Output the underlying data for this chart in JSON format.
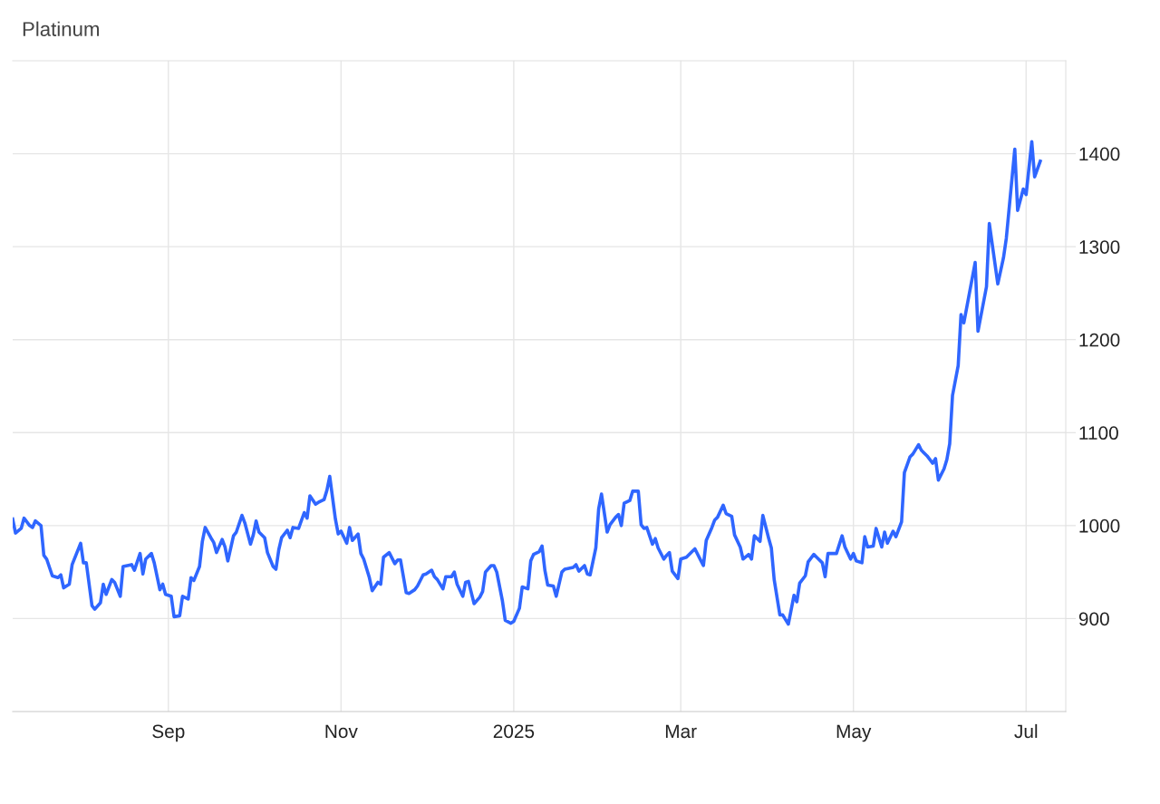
{
  "chart_data": {
    "type": "line",
    "title": "Platinum",
    "x": [
      "2024-07-08",
      "2024-07-09",
      "2024-07-11",
      "2024-07-12",
      "2024-07-14",
      "2024-07-15",
      "2024-07-16",
      "2024-07-18",
      "2024-07-19",
      "2024-07-20",
      "2024-07-22",
      "2024-07-24",
      "2024-07-25",
      "2024-07-26",
      "2024-07-28",
      "2024-07-29",
      "2024-08-01",
      "2024-08-02",
      "2024-08-03",
      "2024-08-05",
      "2024-08-06",
      "2024-08-08",
      "2024-08-09",
      "2024-08-10",
      "2024-08-12",
      "2024-08-13",
      "2024-08-15",
      "2024-08-16",
      "2024-08-19",
      "2024-08-20",
      "2024-08-22",
      "2024-08-23",
      "2024-08-24",
      "2024-08-26",
      "2024-08-27",
      "2024-08-29",
      "2024-08-30",
      "2024-08-31",
      "2024-09-02",
      "2024-09-03",
      "2024-09-05",
      "2024-09-06",
      "2024-09-08",
      "2024-09-09",
      "2024-09-10",
      "2024-09-12",
      "2024-09-13",
      "2024-09-14",
      "2024-09-16",
      "2024-09-17",
      "2024-09-18",
      "2024-09-20",
      "2024-09-21",
      "2024-09-22",
      "2024-09-24",
      "2024-09-25",
      "2024-09-27",
      "2024-09-28",
      "2024-09-30",
      "2024-10-01",
      "2024-10-02",
      "2024-10-03",
      "2024-10-05",
      "2024-10-06",
      "2024-10-08",
      "2024-10-09",
      "2024-10-10",
      "2024-10-11",
      "2024-10-13",
      "2024-10-14",
      "2024-10-15",
      "2024-10-17",
      "2024-10-19",
      "2024-10-20",
      "2024-10-21",
      "2024-10-23",
      "2024-10-24",
      "2024-10-26",
      "2024-10-27",
      "2024-10-28",
      "2024-10-30",
      "2024-10-31",
      "2024-11-01",
      "2024-11-03",
      "2024-11-04",
      "2024-11-05",
      "2024-11-07",
      "2024-11-08",
      "2024-11-09",
      "2024-11-11",
      "2024-11-12",
      "2024-11-14",
      "2024-11-15",
      "2024-11-16",
      "2024-11-18",
      "2024-11-20",
      "2024-11-21",
      "2024-11-22",
      "2024-11-24",
      "2024-11-25",
      "2024-11-27",
      "2024-11-28",
      "2024-11-30",
      "2024-12-01",
      "2024-12-03",
      "2024-12-04",
      "2024-12-05",
      "2024-12-07",
      "2024-12-08",
      "2024-12-10",
      "2024-12-11",
      "2024-12-12",
      "2024-12-14",
      "2024-12-15",
      "2024-12-16",
      "2024-12-18",
      "2024-12-20",
      "2024-12-21",
      "2024-12-22",
      "2024-12-24",
      "2024-12-25",
      "2024-12-26",
      "2024-12-28",
      "2024-12-29",
      "2024-12-31",
      "2025-01-01",
      "2025-01-03",
      "2025-01-04",
      "2025-01-06",
      "2025-01-07",
      "2025-01-08",
      "2025-01-10",
      "2025-01-11",
      "2025-01-12",
      "2025-01-13",
      "2025-01-15",
      "2025-01-16",
      "2025-01-18",
      "2025-01-19",
      "2025-01-22",
      "2025-01-23",
      "2025-01-24",
      "2025-01-26",
      "2025-01-27",
      "2025-01-28",
      "2025-01-30",
      "2025-01-31",
      "2025-02-01",
      "2025-02-03",
      "2025-02-04",
      "2025-02-06",
      "2025-02-07",
      "2025-02-08",
      "2025-02-09",
      "2025-02-11",
      "2025-02-12",
      "2025-02-14",
      "2025-02-15",
      "2025-02-16",
      "2025-02-17",
      "2025-02-19",
      "2025-02-20",
      "2025-02-21",
      "2025-02-23",
      "2025-02-24",
      "2025-02-25",
      "2025-02-26",
      "2025-02-28",
      "2025-03-01",
      "2025-03-03",
      "2025-03-05",
      "2025-03-06",
      "2025-03-08",
      "2025-03-09",
      "2025-03-10",
      "2025-03-12",
      "2025-03-13",
      "2025-03-14",
      "2025-03-16",
      "2025-03-17",
      "2025-03-19",
      "2025-03-20",
      "2025-03-22",
      "2025-03-23",
      "2025-03-25",
      "2025-03-26",
      "2025-03-27",
      "2025-03-29",
      "2025-03-30",
      "2025-04-01",
      "2025-04-02",
      "2025-04-03",
      "2025-04-05",
      "2025-04-06",
      "2025-04-08",
      "2025-04-10",
      "2025-04-11",
      "2025-04-12",
      "2025-04-14",
      "2025-04-15",
      "2025-04-17",
      "2025-04-18",
      "2025-04-20",
      "2025-04-21",
      "2025-04-22",
      "2025-04-25",
      "2025-04-27",
      "2025-04-28",
      "2025-04-30",
      "2025-05-01",
      "2025-05-02",
      "2025-05-04",
      "2025-05-05",
      "2025-05-06",
      "2025-05-08",
      "2025-05-09",
      "2025-05-11",
      "2025-05-12",
      "2025-05-13",
      "2025-05-15",
      "2025-05-16",
      "2025-05-18",
      "2025-05-19",
      "2025-05-21",
      "2025-05-22",
      "2025-05-24",
      "2025-05-25",
      "2025-05-27",
      "2025-05-29",
      "2025-05-30",
      "2025-05-31",
      "2025-06-02",
      "2025-06-03",
      "2025-06-04",
      "2025-06-05",
      "2025-06-07",
      "2025-06-08",
      "2025-06-09",
      "2025-06-13",
      "2025-06-14",
      "2025-06-17",
      "2025-06-18",
      "2025-06-21",
      "2025-06-23",
      "2025-06-24",
      "2025-06-27",
      "2025-06-28",
      "2025-06-30",
      "2025-07-01",
      "2025-07-03",
      "2025-07-04",
      "2025-07-06"
    ],
    "series": [
      {
        "color": "#2f66ff",
        "values": [
          1007,
          992,
          997,
          1008,
          1000,
          998,
          1005,
          1000,
          968,
          964,
          946,
          944,
          947,
          933,
          937,
          958,
          981,
          960,
          960,
          914,
          910,
          917,
          937,
          926,
          942,
          939,
          924,
          956,
          958,
          952,
          970,
          948,
          964,
          970,
          960,
          931,
          937,
          926,
          924,
          902,
          903,
          924,
          921,
          944,
          941,
          956,
          983,
          998,
          987,
          982,
          971,
          985,
          977,
          962,
          989,
          993,
          1011,
          1003,
          980,
          990,
          1005,
          993,
          987,
          971,
          956,
          953,
          974,
          987,
          995,
          987,
          998,
          997,
          1014,
          1008,
          1032,
          1023,
          1025,
          1028,
          1038,
          1053,
          1007,
          991,
          994,
          981,
          998,
          984,
          991,
          970,
          964,
          944,
          930,
          939,
          937,
          966,
          971,
          959,
          963,
          963,
          928,
          927,
          931,
          935,
          947,
          948,
          952,
          945,
          942,
          932,
          945,
          945,
          950,
          937,
          924,
          939,
          940,
          916,
          923,
          929,
          950,
          957,
          957,
          950,
          919,
          898,
          895,
          897,
          911,
          934,
          932,
          962,
          969,
          972,
          978,
          952,
          936,
          935,
          924,
          950,
          953,
          955,
          958,
          951,
          957,
          948,
          947,
          976,
          1018,
          1034,
          993,
          1001,
          1009,
          1012,
          1000,
          1024,
          1027,
          1037,
          1037,
          1001,
          997,
          998,
          980,
          986,
          976,
          964,
          968,
          971,
          951,
          943,
          964,
          966,
          972,
          975,
          963,
          957,
          984,
          998,
          1006,
          1009,
          1022,
          1013,
          1010,
          990,
          977,
          964,
          969,
          964,
          989,
          983,
          1011,
          987,
          976,
          942,
          904,
          904,
          894,
          925,
          918,
          938,
          946,
          961,
          969,
          966,
          960,
          945,
          970,
          970,
          989,
          977,
          964,
          970,
          962,
          960,
          988,
          977,
          978,
          997,
          977,
          993,
          981,
          994,
          988,
          1004,
          1057,
          1074,
          1077,
          1087,
          1081,
          1075,
          1067,
          1072,
          1049,
          1061,
          1071,
          1088,
          1140,
          1172,
          1227,
          1218,
          1283,
          1209,
          1257,
          1325,
          1260,
          1288,
          1309,
          1405,
          1339,
          1362,
          1356,
          1413,
          1375,
          1392
        ]
      }
    ],
    "xlim": [
      "2024-07-08",
      "2025-07-15"
    ],
    "xticks": [
      {
        "value": "2024-09-01",
        "label": "Sep"
      },
      {
        "value": "2024-11-01",
        "label": "Nov"
      },
      {
        "value": "2025-01-01",
        "label": "2025"
      },
      {
        "value": "2025-03-01",
        "label": "Mar"
      },
      {
        "value": "2025-05-01",
        "label": "May"
      },
      {
        "value": "2025-07-01",
        "label": "Jul"
      }
    ],
    "ylim": [
      800,
      1500
    ],
    "yticks": [
      900,
      1000,
      1100,
      1200,
      1300,
      1400
    ],
    "grid": true,
    "marker": "none",
    "line_style": "solid"
  }
}
